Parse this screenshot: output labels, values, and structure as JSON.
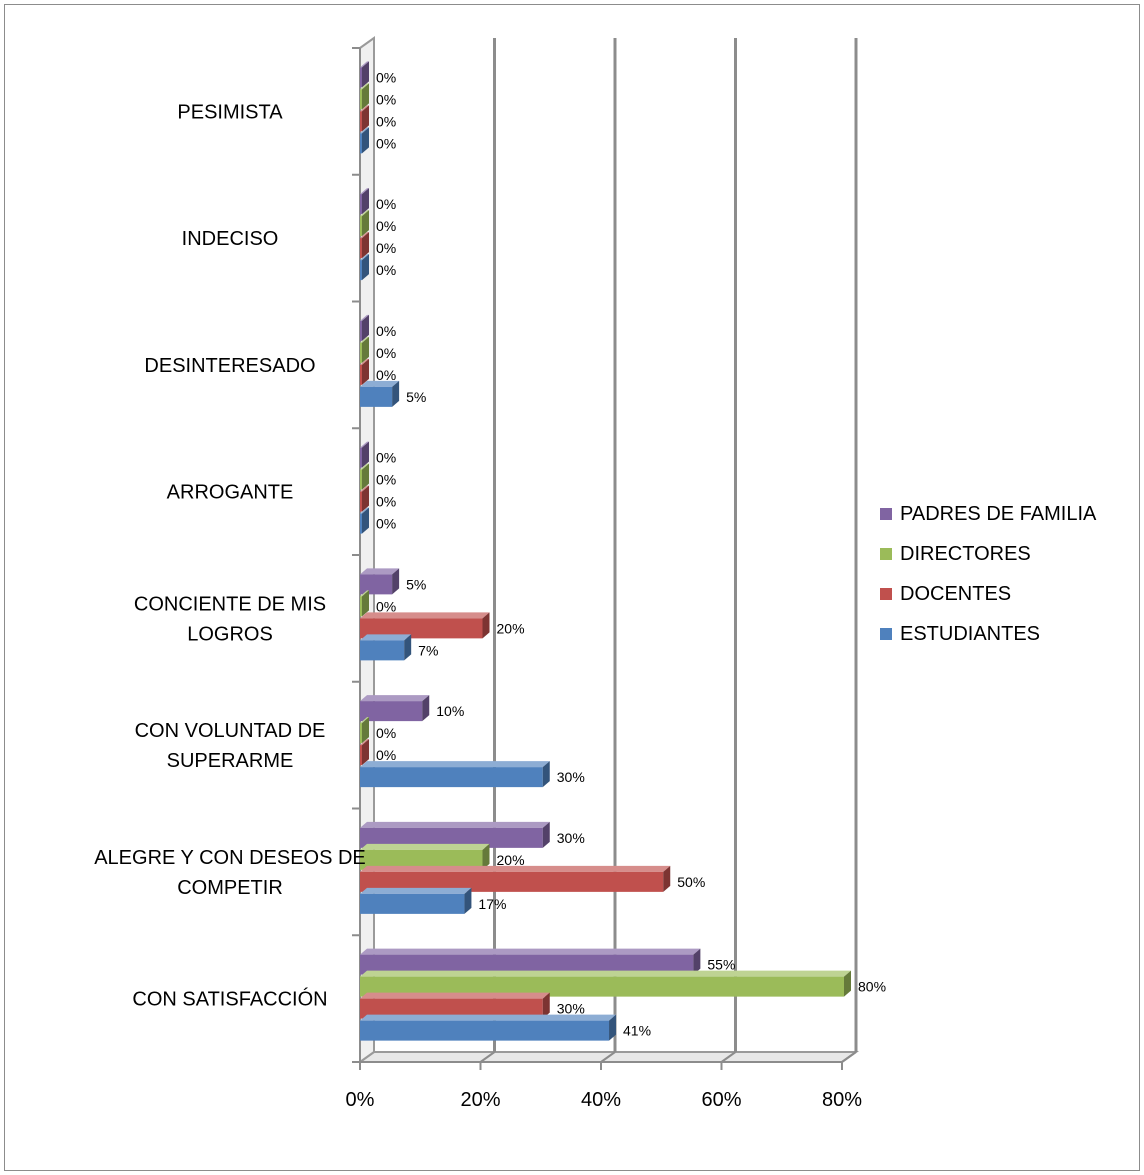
{
  "chart_data": {
    "type": "bar",
    "orientation": "horizontal",
    "style": "3d",
    "categories": [
      [
        "PESIMISTA"
      ],
      [
        "INDECISO"
      ],
      [
        "DESINTERESADO"
      ],
      [
        "ARROGANTE"
      ],
      [
        "CONCIENTE DE MIS",
        "LOGROS"
      ],
      [
        "CON VOLUNTAD DE",
        "SUPERARME"
      ],
      [
        "ALEGRE Y CON DESEOS DE",
        "COMPETIR"
      ],
      [
        "CON SATISFACCIÓN"
      ]
    ],
    "series": [
      {
        "name": "ESTUDIANTES",
        "color": "#4f81bd",
        "values": [
          0,
          0,
          5,
          0,
          7,
          30,
          17,
          41
        ]
      },
      {
        "name": "DOCENTES",
        "color": "#c0504d",
        "values": [
          0,
          0,
          0,
          0,
          20,
          0,
          50,
          30
        ]
      },
      {
        "name": "DIRECTORES",
        "color": "#9bbb59",
        "values": [
          0,
          0,
          0,
          0,
          0,
          0,
          20,
          80
        ]
      },
      {
        "name": "PADRES DE FAMILIA",
        "color": "#8064a2",
        "values": [
          0,
          0,
          0,
          0,
          5,
          10,
          30,
          55
        ]
      }
    ],
    "value_labels": [
      [
        "0%",
        "0%",
        "5%",
        "0%",
        "7%",
        "30%",
        "17%",
        "41%"
      ],
      [
        "0%",
        "0%",
        "0%",
        "0%",
        "20%",
        "0%",
        "50%",
        "30%"
      ],
      [
        "0%",
        "0%",
        "0%",
        "0%",
        "0%",
        "0%",
        "20%",
        "80%"
      ],
      [
        "0%",
        "0%",
        "0%",
        "0%",
        "5%",
        "10%",
        "30%",
        "55%"
      ]
    ],
    "x_ticks": [
      0,
      20,
      40,
      60,
      80
    ],
    "x_tick_labels": [
      "0%",
      "20%",
      "40%",
      "60%",
      "80%"
    ],
    "xlim": [
      0,
      80
    ],
    "grid": true,
    "legend_position": "right",
    "legend_order": [
      "PADRES DE FAMILIA",
      "DIRECTORES",
      "DOCENTES",
      "ESTUDIANTES"
    ],
    "title": "",
    "xlabel": "",
    "ylabel": ""
  }
}
